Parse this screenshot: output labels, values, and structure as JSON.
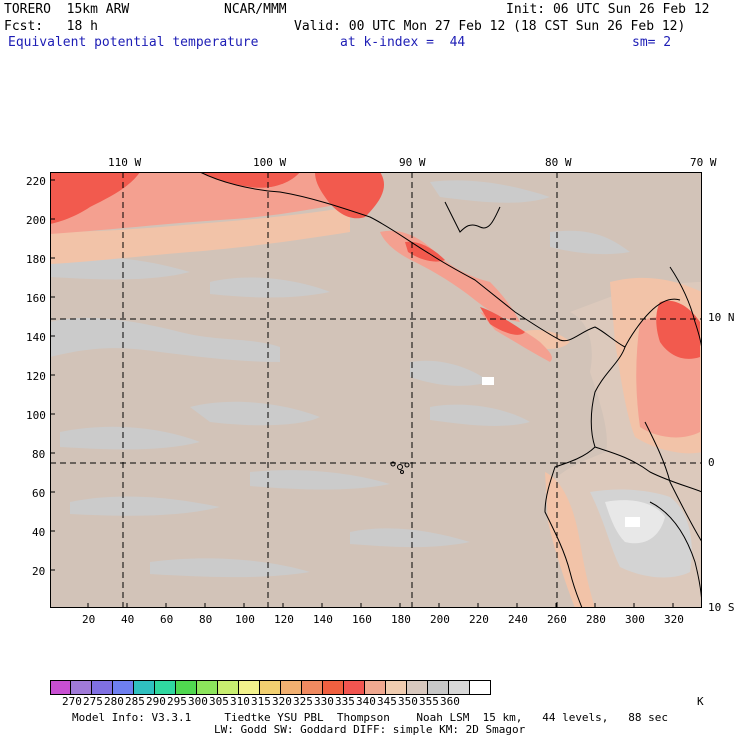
{
  "header": {
    "model": "TORERO  15km ARW",
    "org": "NCAR/MMM",
    "init": "Init: 06 UTC Sun 26 Feb 12",
    "fcst": "Fcst:   18 h",
    "valid": "Valid: 00 UTC Mon 27 Feb 12 (18 CST Sun 26 Feb 12)",
    "field": "Equivalent potential temperature",
    "level": "at k-index =  44",
    "smooth": "sm= 2"
  },
  "map": {
    "top_lon_labels": [
      "110 W",
      "100 W",
      "90 W",
      "80 W",
      "70 W"
    ],
    "right_lat_labels": [
      "10 N",
      "0",
      "10 S"
    ],
    "y_ticks": [
      "220",
      "200",
      "180",
      "160",
      "140",
      "120",
      "100",
      "80",
      "60",
      "40",
      "20"
    ],
    "x_ticks": [
      "20",
      "40",
      "60",
      "80",
      "100",
      "120",
      "140",
      "160",
      "180",
      "200",
      "220",
      "240",
      "260",
      "280",
      "300",
      "320"
    ]
  },
  "legend": {
    "colors": [
      "#c84fd2",
      "#a07ad8",
      "#8070e2",
      "#6e7ff0",
      "#30c0c0",
      "#30d8a0",
      "#50d850",
      "#8ce45c",
      "#c8ee70",
      "#f2f28c",
      "#f2d070",
      "#f2b070",
      "#f08a60",
      "#f06040",
      "#f25550",
      "#f0a890",
      "#f0ccb0",
      "#d8c8be",
      "#c8c8c8",
      "#d8d8d8",
      "#ffffff"
    ],
    "labels": [
      "270",
      "275",
      "280",
      "285",
      "290",
      "295",
      "300",
      "305",
      "310",
      "315",
      "320",
      "325",
      "330",
      "335",
      "340",
      "345",
      "350",
      "355",
      "360"
    ],
    "unit": "K"
  },
  "footer": {
    "line1": "Model Info: V3.3.1     Tiedtke YSU PBL  Thompson    Noah LSM  15 km,   44 levels,   88 sec",
    "line2": "LW: Godd SW: Goddard DIFF: simple KM: 2D Smagor"
  }
}
